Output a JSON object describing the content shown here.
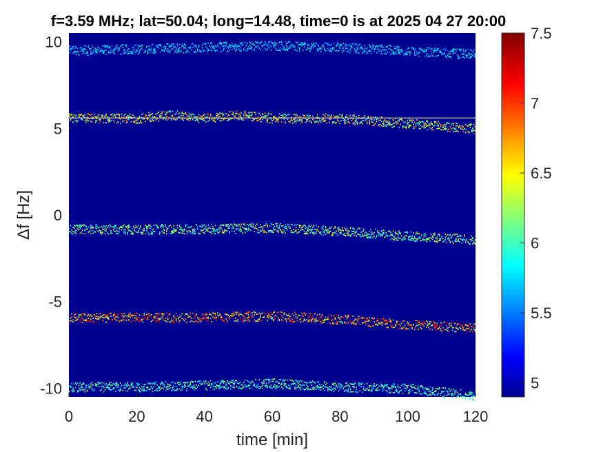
{
  "chart_data": {
    "type": "heatmap",
    "title": "f=3.59 MHz;  lat=50.04; long=14.48, time=0 is at 2025 04 27 20:00",
    "xlabel": "time [min]",
    "ylabel": "Δf [Hz]",
    "xlim": [
      0,
      120
    ],
    "ylim": [
      -10.5,
      10.5
    ],
    "x_ticks": [
      0,
      20,
      40,
      60,
      80,
      100,
      120
    ],
    "y_ticks": [
      -10,
      -5,
      0,
      5,
      10
    ],
    "x_tick_labels": [
      "0",
      "20",
      "40",
      "60",
      "80",
      "100",
      "120"
    ],
    "y_tick_labels": [
      "-10",
      "-5",
      "0",
      "5",
      "10"
    ],
    "background_color": "#00008f",
    "colorbar": {
      "range": [
        4.9,
        7.5
      ],
      "ticks": [
        5,
        5.5,
        6,
        6.5,
        7,
        7.5
      ],
      "tick_labels": [
        "5",
        "5.5",
        "6",
        "6.5",
        "7",
        "7.5"
      ],
      "colormap": "jet"
    },
    "traces": [
      {
        "name": "trace_10",
        "points": [
          [
            0,
            9.5
          ],
          [
            20,
            9.6
          ],
          [
            40,
            9.7
          ],
          [
            60,
            9.8
          ],
          [
            80,
            9.7
          ],
          [
            100,
            9.5
          ],
          [
            120,
            9.3
          ]
        ],
        "level": 5.6
      },
      {
        "name": "trace_5_5",
        "points": [
          [
            0,
            5.6
          ],
          [
            20,
            5.6
          ],
          [
            30,
            5.8
          ],
          [
            40,
            5.6
          ],
          [
            50,
            5.8
          ],
          [
            60,
            5.6
          ],
          [
            80,
            5.6
          ],
          [
            100,
            5.3
          ],
          [
            120,
            5.0
          ]
        ],
        "level": 6.5
      },
      {
        "name": "trace_minus_1",
        "points": [
          [
            0,
            -0.8
          ],
          [
            20,
            -0.8
          ],
          [
            40,
            -0.8
          ],
          [
            60,
            -0.7
          ],
          [
            80,
            -0.9
          ],
          [
            100,
            -1.2
          ],
          [
            120,
            -1.4
          ]
        ],
        "level": 6.2
      },
      {
        "name": "trace_minus_6",
        "points": [
          [
            0,
            -5.9
          ],
          [
            20,
            -5.9
          ],
          [
            40,
            -5.9
          ],
          [
            60,
            -5.8
          ],
          [
            80,
            -6.0
          ],
          [
            100,
            -6.3
          ],
          [
            120,
            -6.5
          ]
        ],
        "level": 7.0
      },
      {
        "name": "trace_minus_10",
        "points": [
          [
            0,
            -9.9
          ],
          [
            20,
            -9.9
          ],
          [
            40,
            -9.8
          ],
          [
            60,
            -9.7
          ],
          [
            80,
            -9.9
          ],
          [
            100,
            -10.0
          ],
          [
            120,
            -10.4
          ]
        ],
        "level": 6.0
      }
    ],
    "reference_line": {
      "y": 5.6,
      "x_range": [
        0,
        120
      ]
    }
  }
}
